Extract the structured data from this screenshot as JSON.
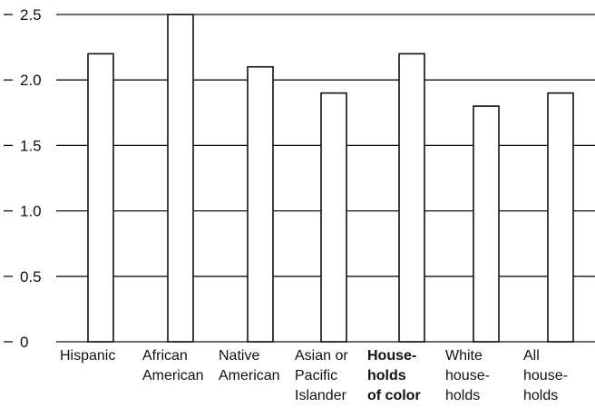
{
  "chart_data": {
    "type": "bar",
    "title": "",
    "xlabel": "",
    "ylabel": "",
    "ylim": [
      0,
      2.5
    ],
    "y_ticks": [
      0,
      0.5,
      1.0,
      1.5,
      2.0,
      2.5
    ],
    "y_tick_labels": [
      "0",
      "0.5",
      "1.0",
      "1.5",
      "2.0",
      "2.5"
    ],
    "grid": true,
    "categories": [
      {
        "lines": [
          "Hispanic"
        ],
        "bold": false
      },
      {
        "lines": [
          "African",
          "American"
        ],
        "bold": false
      },
      {
        "lines": [
          "Native",
          "American"
        ],
        "bold": false
      },
      {
        "lines": [
          "Asian or",
          "Pacific",
          "Islander"
        ],
        "bold": false
      },
      {
        "lines": [
          "House-",
          "holds",
          "of color"
        ],
        "bold": true
      },
      {
        "lines": [
          "White",
          "house-",
          "holds"
        ],
        "bold": false
      },
      {
        "lines": [
          "All",
          "house-",
          "holds"
        ],
        "bold": false
      }
    ],
    "values": [
      2.2,
      2.5,
      2.1,
      1.9,
      2.2,
      1.8,
      1.9
    ]
  }
}
